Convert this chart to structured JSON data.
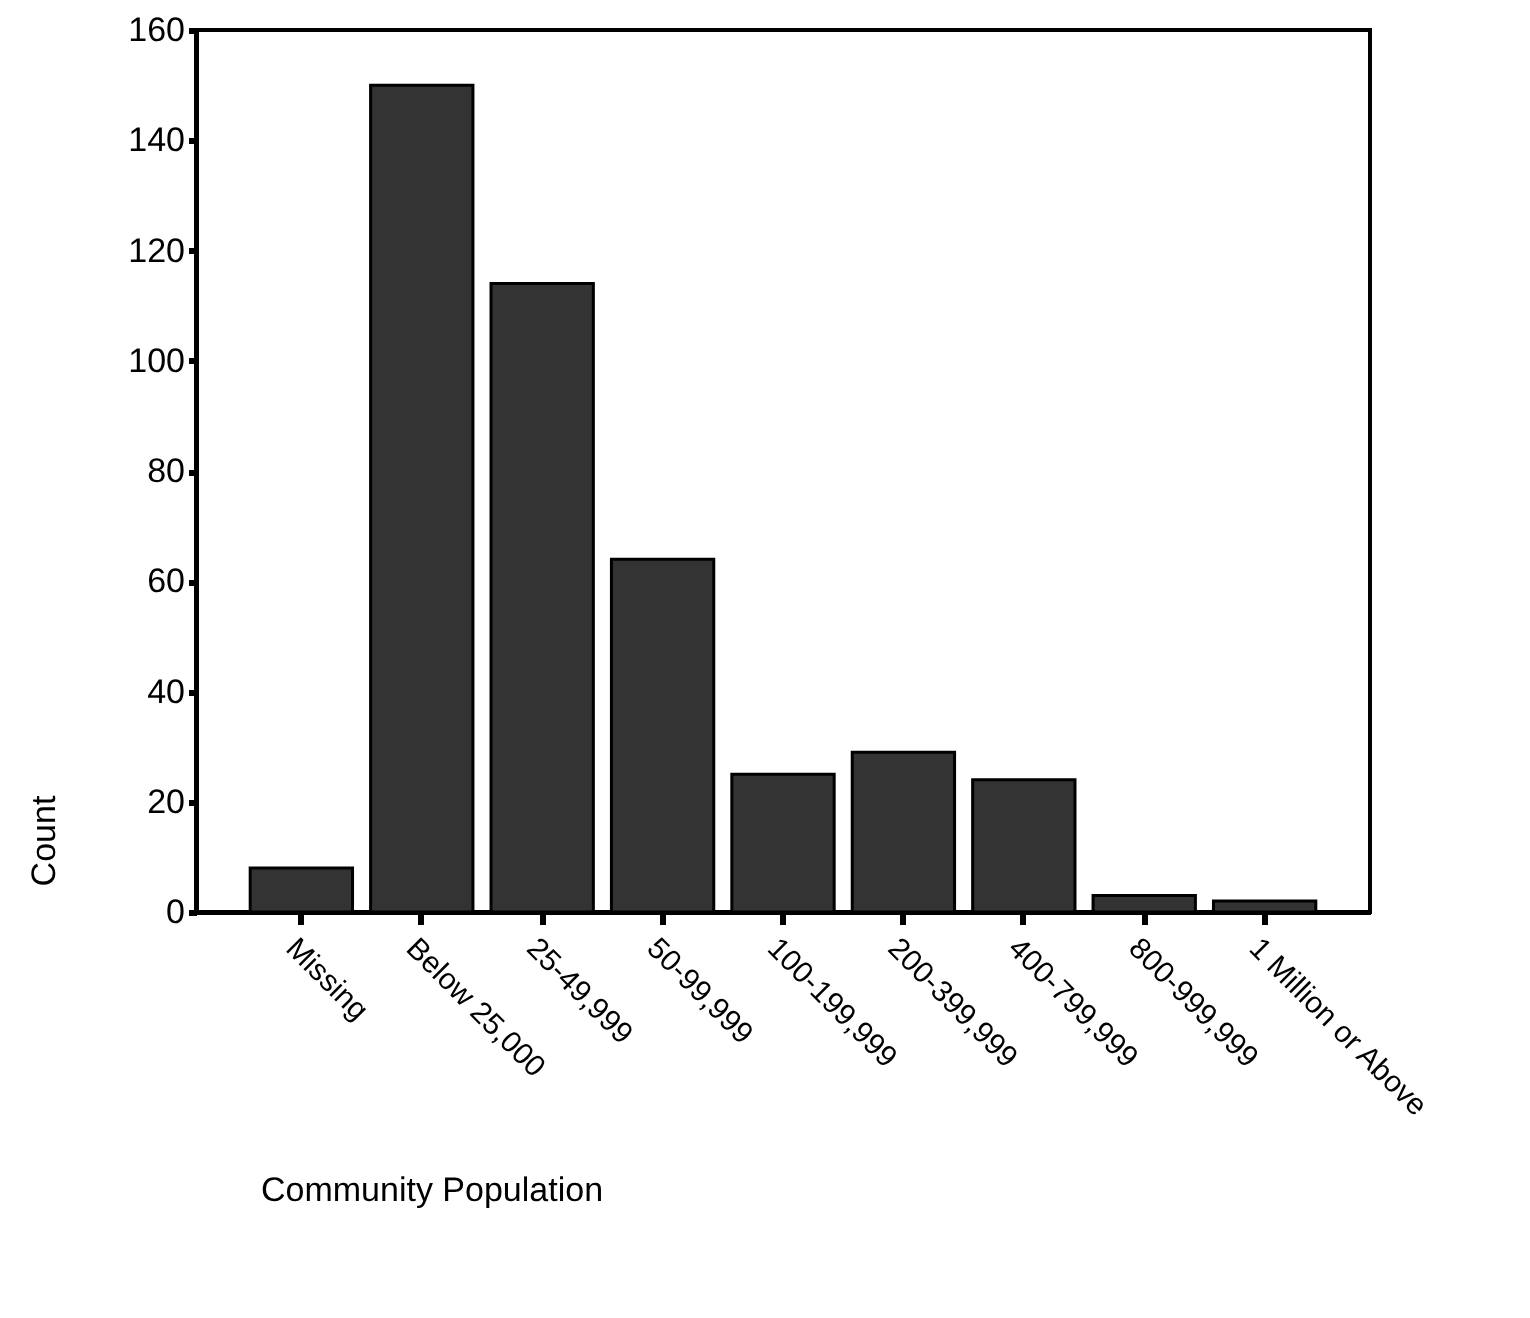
{
  "chart_data": {
    "type": "bar",
    "xlabel": "Community Population",
    "ylabel": "Count",
    "categories": [
      "Missing",
      "Below 25,000",
      "25-49,999",
      "50-99,999",
      "100-199,999",
      "200-399,999",
      "400-799,999",
      "800-999,999",
      "1 Million or Above"
    ],
    "values": [
      8,
      150,
      114,
      64,
      25,
      29,
      24,
      3,
      2
    ],
    "color": "#333333",
    "ylim": [
      0,
      160
    ],
    "yticks": [
      0,
      20,
      40,
      60,
      80,
      100,
      120,
      140,
      160
    ],
    "grid": false
  }
}
